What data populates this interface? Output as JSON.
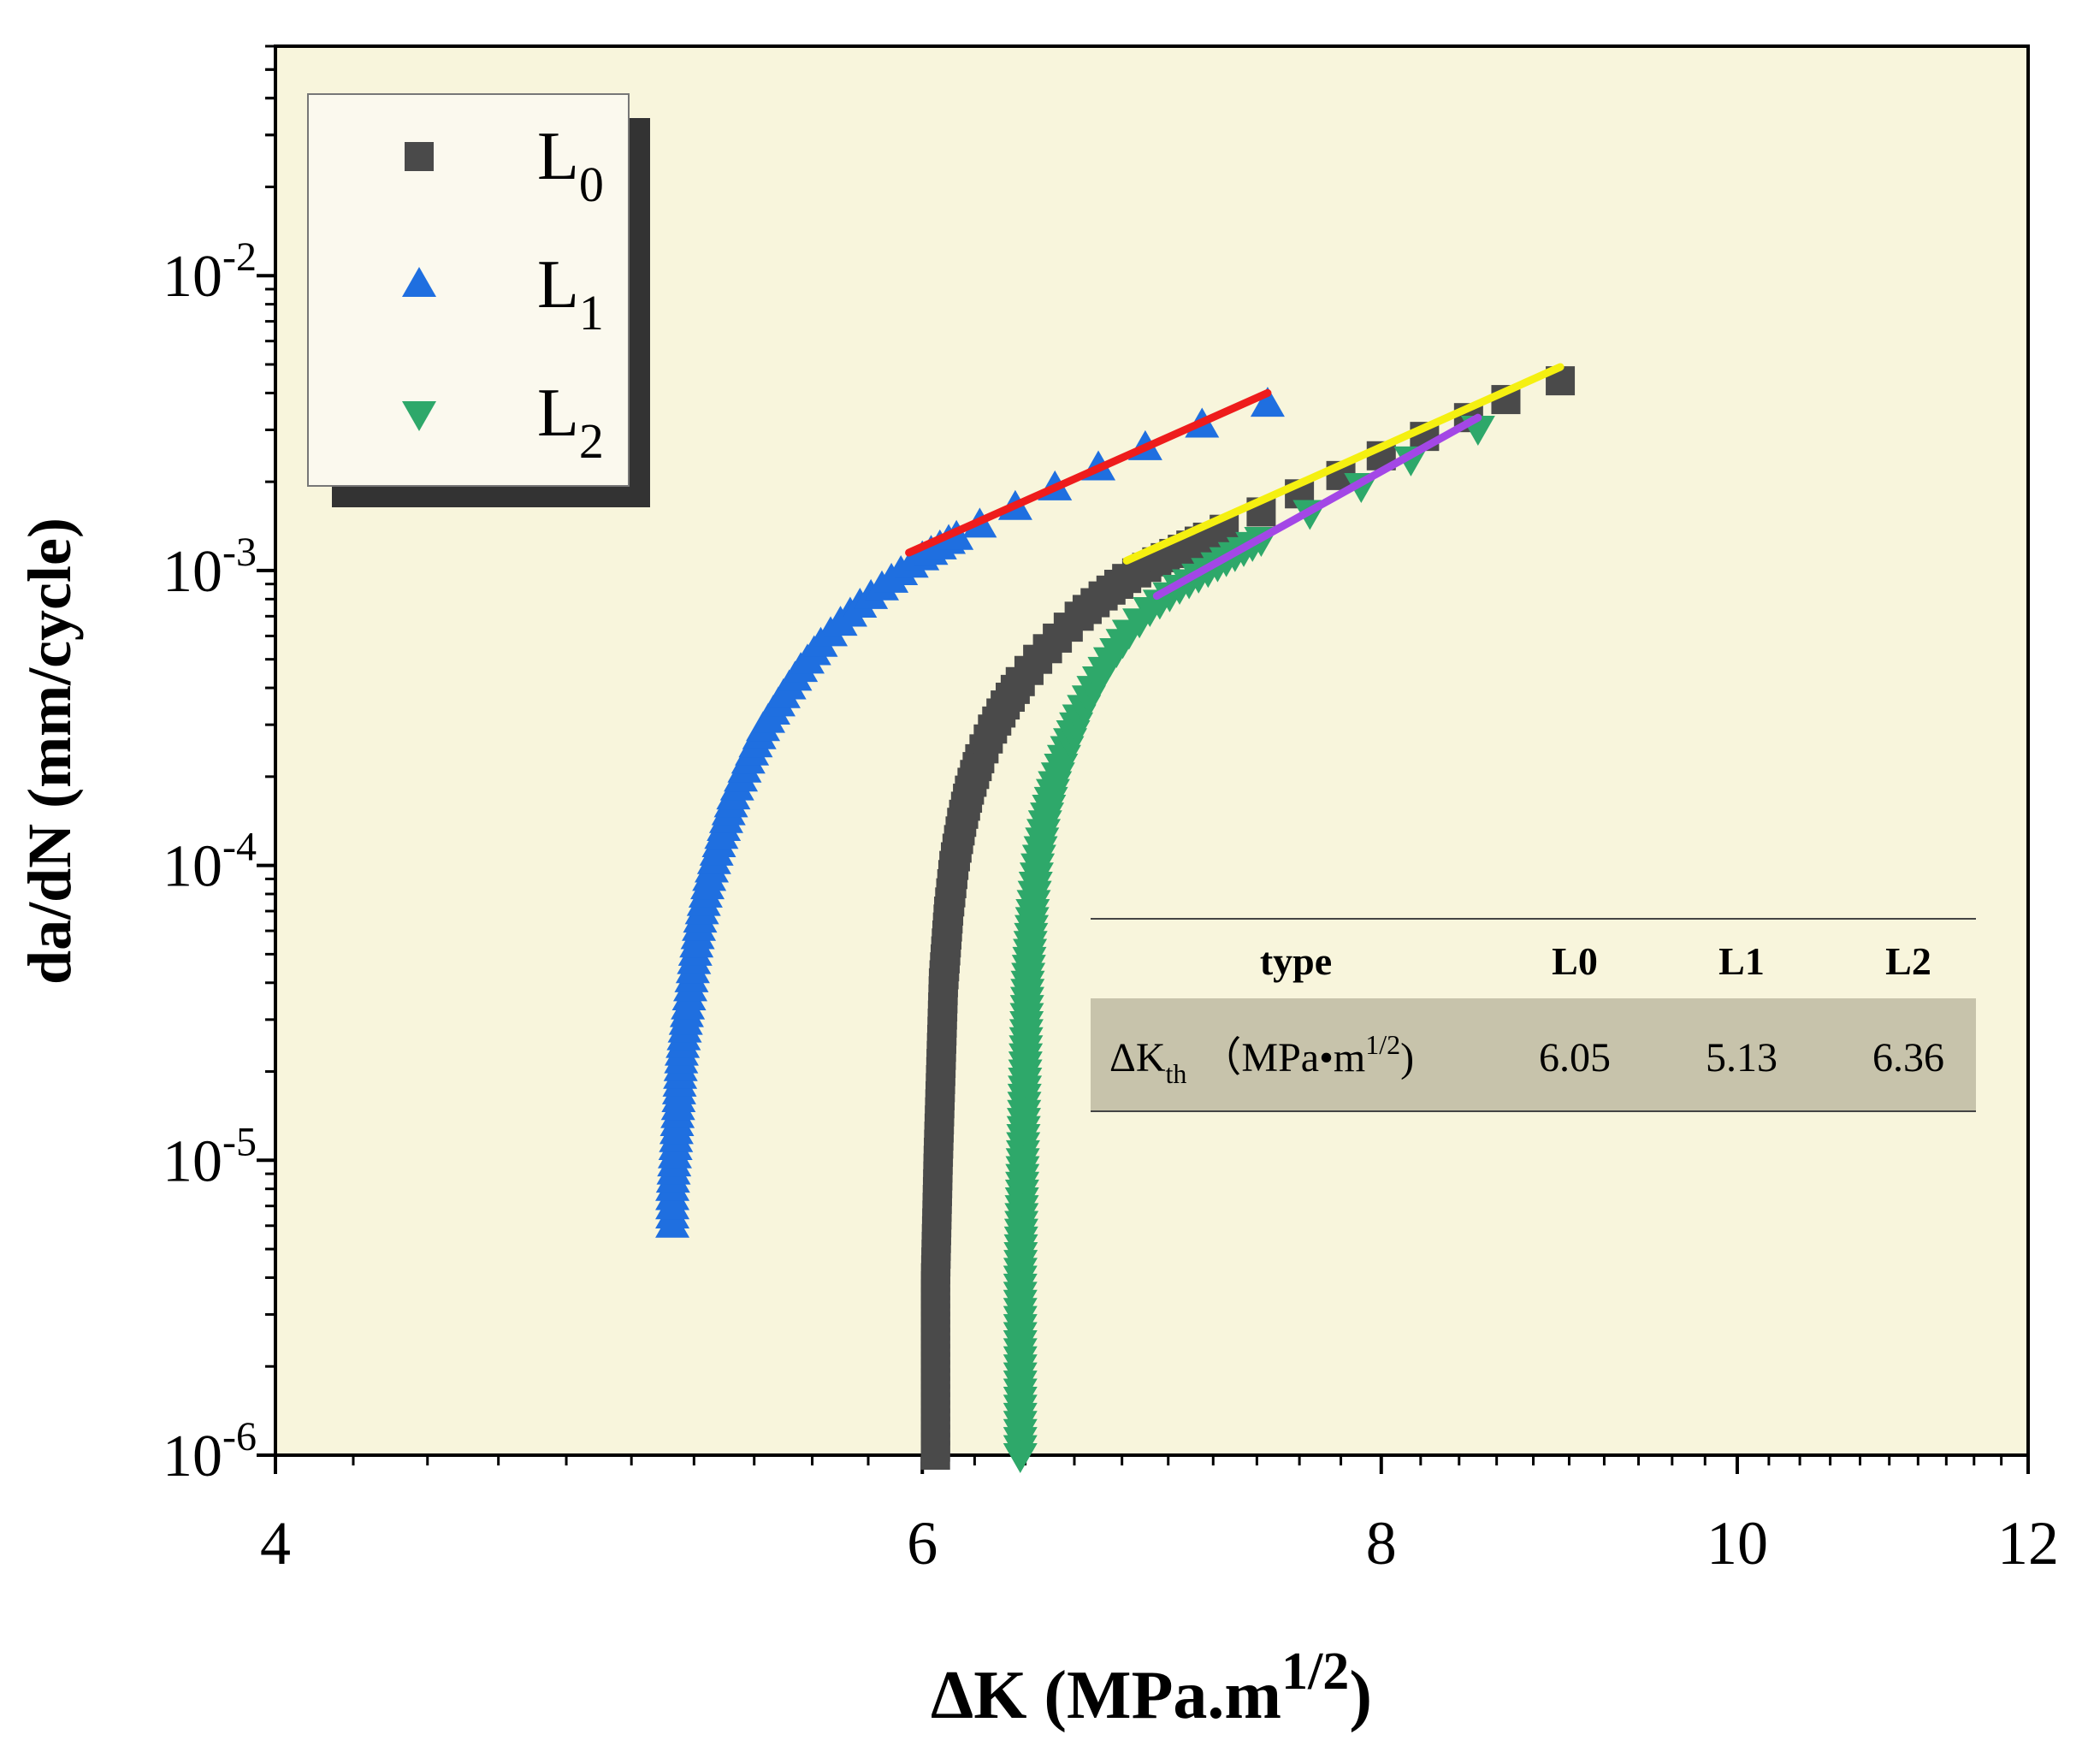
{
  "chart_data": {
    "type": "scatter",
    "x_scale": "log",
    "y_scale": "log",
    "xlim": [
      4,
      12
    ],
    "ylim": [
      1e-06,
      0.06
    ],
    "xlabel": {
      "main": "ΔK (MPa.m",
      "sup": "1/2",
      "close": ")"
    },
    "ylabel": "da/dN (mm/cycle)",
    "x_ticks": [
      {
        "value": 4,
        "label": "4"
      },
      {
        "value": 6,
        "label": "6"
      },
      {
        "value": 8,
        "label": "8"
      },
      {
        "value": 10,
        "label": "10"
      },
      {
        "value": 12,
        "label": "12"
      }
    ],
    "y_ticks": [
      {
        "value": 1e-06,
        "base": "10",
        "exp": "-6"
      },
      {
        "value": 1e-05,
        "base": "10",
        "exp": "-5"
      },
      {
        "value": 0.0001,
        "base": "10",
        "exp": "-4"
      },
      {
        "value": 0.001,
        "base": "10",
        "exp": "-3"
      },
      {
        "value": 0.01,
        "base": "10",
        "exp": "-2"
      }
    ],
    "background_color": "#f8f5dc",
    "legend_position": "top-left",
    "series": [
      {
        "name": "L0",
        "label_main": "L",
        "label_sub": "0",
        "marker": "square",
        "color": "#4a4a4a",
        "threshold": 6.05,
        "points": [
          [
            6.05,
            1e-06
          ],
          [
            6.05,
            2e-06
          ],
          [
            6.05,
            4e-06
          ],
          [
            6.06,
            1e-05
          ],
          [
            6.07,
            2e-05
          ],
          [
            6.08,
            4e-05
          ],
          [
            6.1,
            7e-05
          ],
          [
            6.12,
            0.0001
          ],
          [
            6.15,
            0.00014
          ],
          [
            6.18,
            0.00018
          ],
          [
            6.22,
            0.00023
          ],
          [
            6.27,
            0.00029
          ],
          [
            6.32,
            0.00035
          ],
          [
            6.38,
            0.00042
          ],
          [
            6.45,
            0.0005
          ],
          [
            6.53,
            0.00059
          ],
          [
            6.62,
            0.0007
          ],
          [
            6.72,
            0.00082
          ],
          [
            6.82,
            0.00094
          ],
          [
            6.95,
            0.00107
          ],
          [
            7.1,
            0.00122
          ],
          [
            7.25,
            0.00138
          ],
          [
            7.42,
            0.00158
          ],
          [
            7.6,
            0.00182
          ],
          [
            7.8,
            0.0021
          ],
          [
            8.0,
            0.00245
          ],
          [
            8.22,
            0.00285
          ],
          [
            8.45,
            0.0033
          ],
          [
            8.65,
            0.0038
          ],
          [
            8.95,
            0.0044
          ]
        ]
      },
      {
        "name": "L1",
        "label_main": "L",
        "label_sub": "1",
        "marker": "triangle-up",
        "color": "#1f6fe0",
        "threshold": 5.13,
        "points": [
          [
            5.13,
            6e-06
          ],
          [
            5.13,
            8e-06
          ],
          [
            5.14,
            1.1e-05
          ],
          [
            5.15,
            1.6e-05
          ],
          [
            5.16,
            2.3e-05
          ],
          [
            5.18,
            3.3e-05
          ],
          [
            5.2,
            4.7e-05
          ],
          [
            5.22,
            6.5e-05
          ],
          [
            5.25,
            9e-05
          ],
          [
            5.29,
            0.000125
          ],
          [
            5.33,
            0.00017
          ],
          [
            5.38,
            0.000225
          ],
          [
            5.43,
            0.00029
          ],
          [
            5.5,
            0.000375
          ],
          [
            5.56,
            0.00046
          ],
          [
            5.63,
            0.00056
          ],
          [
            5.7,
            0.00066
          ],
          [
            5.77,
            0.00076
          ],
          [
            5.85,
            0.00087
          ],
          [
            5.92,
            0.00098
          ],
          [
            6.0,
            0.0011
          ],
          [
            6.1,
            0.00125
          ],
          [
            6.22,
            0.00142
          ],
          [
            6.36,
            0.00163
          ],
          [
            6.52,
            0.0019
          ],
          [
            6.7,
            0.00222
          ],
          [
            6.9,
            0.0026
          ],
          [
            7.15,
            0.0031
          ],
          [
            7.45,
            0.00365
          ]
        ]
      },
      {
        "name": "L2",
        "label_main": "L",
        "label_sub": "2",
        "marker": "triangle-down",
        "color": "#2ea86a",
        "threshold": 6.36,
        "points": [
          [
            6.38,
            1e-06
          ],
          [
            6.38,
            2e-06
          ],
          [
            6.38,
            4e-06
          ],
          [
            6.39,
            1e-05
          ],
          [
            6.4,
            2e-05
          ],
          [
            6.41,
            4e-05
          ],
          [
            6.43,
            7e-05
          ],
          [
            6.45,
            0.0001
          ],
          [
            6.48,
            0.00014
          ],
          [
            6.52,
            0.00019
          ],
          [
            6.57,
            0.00025
          ],
          [
            6.62,
            0.00032
          ],
          [
            6.68,
            0.0004
          ],
          [
            6.75,
            0.0005
          ],
          [
            6.83,
            0.00062
          ],
          [
            6.92,
            0.00074
          ],
          [
            7.05,
            0.00088
          ],
          [
            7.22,
            0.00105
          ],
          [
            7.42,
            0.00128
          ],
          [
            7.65,
            0.00158
          ],
          [
            7.9,
            0.00195
          ],
          [
            8.15,
            0.0024
          ],
          [
            8.5,
            0.00305
          ]
        ]
      }
    ],
    "fit_lines": [
      {
        "name": "L1 fit",
        "color": "#ee1c1c",
        "from": [
          5.95,
          0.00115
        ],
        "to": [
          7.45,
          0.004
        ]
      },
      {
        "name": "L0 fit",
        "color": "#f5f010",
        "from": [
          6.82,
          0.00108
        ],
        "to": [
          8.95,
          0.0049
        ]
      },
      {
        "name": "L2 fit",
        "color": "#a347e6",
        "from": [
          6.95,
          0.00082
        ],
        "to": [
          8.5,
          0.0033
        ]
      }
    ],
    "table": {
      "headers": [
        "type",
        "L0",
        "L1",
        "L2"
      ],
      "row_label": {
        "main": "ΔK",
        "sub": "th",
        "unit": "（MPa•m",
        "unit_sup": "1/2",
        "unit_close": ")"
      },
      "values": [
        "6.05",
        "5.13",
        "6.36"
      ],
      "row_color": "#c7c3ab"
    }
  }
}
